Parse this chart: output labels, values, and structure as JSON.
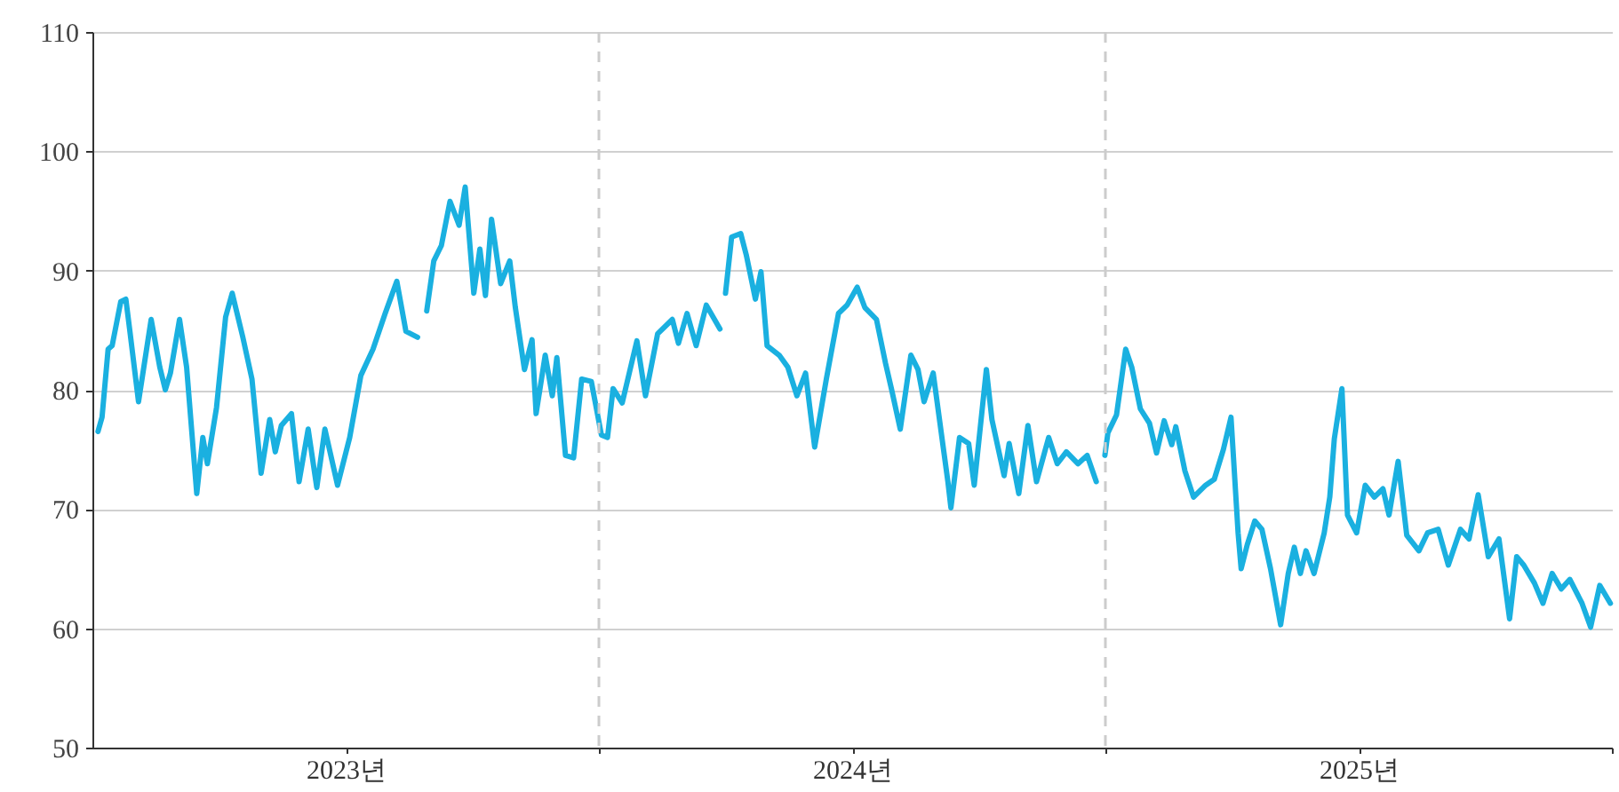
{
  "chart_data": {
    "type": "line",
    "x": [
      2023.011,
      2023.019,
      2023.031,
      2023.039,
      2023.056,
      2023.066,
      2023.074,
      2023.091,
      2023.116,
      2023.133,
      2023.144,
      2023.154,
      2023.172,
      2023.186,
      2023.206,
      2023.218,
      2023.227,
      2023.245,
      2023.263,
      2023.276,
      2023.297,
      2023.315,
      2023.333,
      2023.35,
      2023.361,
      2023.373,
      2023.393,
      2023.408,
      2023.426,
      2023.443,
      2023.459,
      2023.484,
      2023.508,
      2023.53,
      2023.554,
      2023.578,
      2023.601,
      2023.619,
      2023.642,
      2023.65,
      2023.66,
      2023.674,
      2023.689,
      2023.706,
      2023.724,
      2023.736,
      2023.753,
      2023.765,
      2023.776,
      2023.788,
      2023.806,
      2023.824,
      2023.835,
      2023.853,
      2023.868,
      2023.876,
      2023.894,
      2023.908,
      2023.917,
      2023.934,
      2023.95,
      2023.966,
      2023.985,
      2024.005,
      2024.017,
      2024.028,
      2024.046,
      2024.075,
      2024.092,
      2024.116,
      2024.145,
      2024.157,
      2024.174,
      2024.192,
      2024.212,
      2024.239,
      2024.245,
      2024.25,
      2024.262,
      2024.28,
      2024.291,
      2024.309,
      2024.32,
      2024.332,
      2024.356,
      2024.373,
      2024.391,
      2024.408,
      2024.426,
      2024.449,
      2024.473,
      2024.49,
      2024.51,
      2024.525,
      2024.548,
      2024.566,
      2024.578,
      2024.595,
      2024.616,
      2024.63,
      2024.642,
      2024.66,
      2024.689,
      2024.695,
      2024.712,
      2024.73,
      2024.741,
      2024.765,
      2024.776,
      2024.8,
      2024.81,
      2024.829,
      2024.847,
      2024.864,
      2024.888,
      2024.905,
      2024.923,
      2024.946,
      2024.964,
      2024.982,
      2024.99,
      2024.999,
      2025.005,
      2025.022,
      2025.04,
      2025.052,
      2025.069,
      2025.087,
      2025.101,
      2025.116,
      2025.131,
      2025.139,
      2025.157,
      2025.174,
      2025.198,
      2025.215,
      2025.233,
      2025.248,
      2025.262,
      2025.268,
      2025.28,
      2025.295,
      2025.309,
      2025.326,
      2025.346,
      2025.361,
      2025.373,
      2025.385,
      2025.396,
      2025.412,
      2025.432,
      2025.443,
      2025.452,
      2025.467,
      2025.478,
      2025.496,
      2025.513,
      2025.531,
      2025.548,
      2025.56,
      2025.578,
      2025.595,
      2025.619,
      2025.636,
      2025.657,
      2025.677,
      2025.701,
      2025.718,
      2025.736,
      2025.756,
      2025.777,
      2025.798,
      2025.812,
      2025.826,
      2025.847,
      2025.864,
      2025.882,
      2025.9,
      2025.917,
      2025.941,
      2025.958,
      2025.976,
      2025.997
    ],
    "series": [
      {
        "color": "#1ab0e0",
        "values": [
          76.5,
          77.7,
          83.4,
          83.7,
          87.4,
          87.6,
          84.9,
          79,
          85.9,
          81.9,
          80,
          81.4,
          85.9,
          81.9,
          71.3,
          76,
          73.8,
          78.5,
          86.1,
          88.1,
          84.4,
          80.9,
          73,
          77.5,
          74.8,
          77,
          78,
          72.3,
          76.7,
          71.8,
          76.7,
          72,
          76,
          81.2,
          83.4,
          86.4,
          89.1,
          84.9,
          84.4,
          null,
          86.6,
          90.8,
          92.1,
          95.8,
          93.8,
          97,
          88.1,
          91.8,
          87.9,
          94.3,
          88.9,
          90.8,
          86.9,
          81.7,
          84.2,
          78,
          82.9,
          79.5,
          82.7,
          74.5,
          74.3,
          80.9,
          80.7,
          76.2,
          76,
          80.1,
          78.9,
          84.1,
          79.5,
          84.7,
          85.9,
          83.9,
          86.4,
          83.7,
          87.1,
          85.1,
          null,
          88.1,
          92.8,
          93.1,
          91.3,
          87.6,
          89.9,
          83.7,
          82.9,
          81.9,
          79.5,
          81.4,
          75.2,
          80.9,
          86.4,
          87.1,
          88.6,
          86.9,
          85.9,
          82.2,
          80,
          76.7,
          82.9,
          81.7,
          79,
          81.4,
          72.3,
          70.1,
          76,
          75.5,
          72,
          81.7,
          77.5,
          72.8,
          75.5,
          71.3,
          77,
          72.3,
          76,
          73.8,
          74.8,
          73.8,
          74.5,
          72.3,
          null,
          74.5,
          76.4,
          77.9,
          83.4,
          81.9,
          78.4,
          77.2,
          74.7,
          77.4,
          75.4,
          76.9,
          73.2,
          71,
          72,
          72.5,
          75,
          77.7,
          68,
          65,
          67,
          69,
          68.3,
          65,
          60.3,
          64.6,
          66.8,
          64.6,
          66.5,
          64.6,
          68,
          71,
          75.9,
          80.1,
          69.5,
          68,
          72,
          71,
          71.7,
          69.5,
          74,
          67.8,
          66.5,
          68,
          68.3,
          65.3,
          68.3,
          67.5,
          71.2,
          66,
          67.5,
          60.8,
          66,
          65.3,
          63.8,
          62.1,
          64.6,
          63.3,
          64.1,
          62.1,
          60.1,
          63.6,
          62.1
        ]
      }
    ],
    "xlim": [
      2023,
      2026
    ],
    "xticks": [
      {
        "value": 2023.5,
        "label": "2023년"
      },
      {
        "value": 2024,
        "label": null
      },
      {
        "value": 2024.5,
        "label": "2024년"
      },
      {
        "value": 2025,
        "label": null
      },
      {
        "value": 2025.5,
        "label": "2025년"
      },
      {
        "value": 2026,
        "label": null
      }
    ],
    "ylim": [
      50,
      110
    ],
    "yticks": [
      50,
      60,
      70,
      80,
      90,
      100,
      110
    ],
    "grid": "y",
    "line_style": "solid",
    "ref_lines": [
      {
        "axis": "x",
        "value": 2024,
        "label": null,
        "color": "#cccccc",
        "line_style": "dashed"
      },
      {
        "axis": "x",
        "value": 2025,
        "label": null,
        "color": "#cccccc",
        "line_style": "dashed"
      }
    ]
  }
}
